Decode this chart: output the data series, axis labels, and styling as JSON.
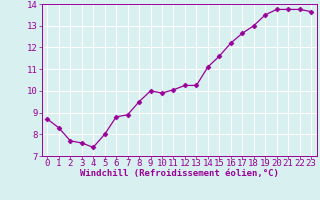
{
  "x": [
    0,
    1,
    2,
    3,
    4,
    5,
    6,
    7,
    8,
    9,
    10,
    11,
    12,
    13,
    14,
    15,
    16,
    17,
    18,
    19,
    20,
    21,
    22,
    23
  ],
  "y": [
    8.7,
    8.3,
    7.7,
    7.6,
    7.4,
    8.0,
    8.8,
    8.9,
    9.5,
    10.0,
    9.9,
    10.05,
    10.25,
    10.25,
    11.1,
    11.6,
    12.2,
    12.65,
    13.0,
    13.5,
    13.75,
    13.75,
    13.75,
    13.65
  ],
  "line_color": "#990099",
  "marker": "D",
  "marker_size": 2.5,
  "bg_color": "#d8f0f0",
  "grid_color": "#ffffff",
  "xlabel": "Windchill (Refroidissement éolien,°C)",
  "xlabel_color": "#990099",
  "tick_color": "#990099",
  "ylim": [
    7,
    14
  ],
  "xlim": [
    -0.5,
    23.5
  ],
  "yticks": [
    7,
    8,
    9,
    10,
    11,
    12,
    13,
    14
  ],
  "xticks": [
    0,
    1,
    2,
    3,
    4,
    5,
    6,
    7,
    8,
    9,
    10,
    11,
    12,
    13,
    14,
    15,
    16,
    17,
    18,
    19,
    20,
    21,
    22,
    23
  ],
  "tick_fontsize": 6.5,
  "xlabel_fontsize": 6.5
}
